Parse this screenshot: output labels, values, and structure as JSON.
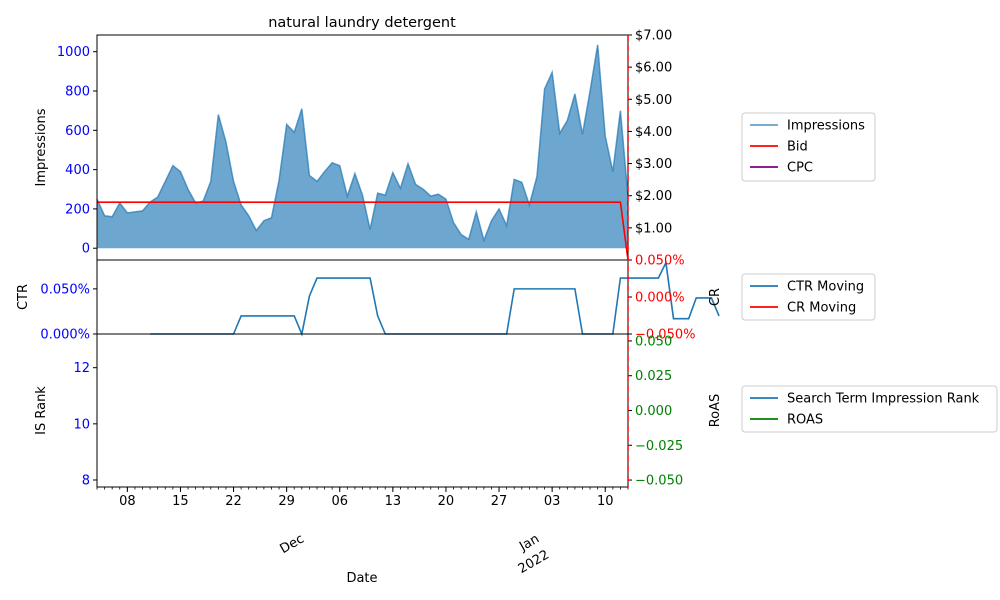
{
  "chart_data": {
    "type": "area",
    "title": "natural laundry detergent",
    "xlabel": "Date",
    "x_start": "2021-11-04",
    "x_end": "2022-01-13",
    "x_ticks": [
      {
        "date": "2021-11-08",
        "label": "08"
      },
      {
        "date": "2021-11-15",
        "label": "15"
      },
      {
        "date": "2021-11-22",
        "label": "22"
      },
      {
        "date": "2021-11-29",
        "label": "29"
      },
      {
        "date": "2021-12-06",
        "label": "06"
      },
      {
        "date": "2021-12-13",
        "label": "13"
      },
      {
        "date": "2021-12-20",
        "label": "20"
      },
      {
        "date": "2021-12-27",
        "label": "27"
      },
      {
        "date": "2022-01-03",
        "label": "03"
      },
      {
        "date": "2022-01-10",
        "label": "10"
      }
    ],
    "x_month_labels": [
      {
        "date": "2021-12-01",
        "label": "Dec"
      },
      {
        "date": "2022-01-01",
        "label": "Jan",
        "sublabel": "2022"
      }
    ],
    "panels": [
      {
        "ylabel_left": "Impressions",
        "ylim_left": [
          -60,
          1085
        ],
        "yticks_left": [
          {
            "value": 0,
            "label": "0"
          },
          {
            "value": 200,
            "label": "200"
          },
          {
            "value": 400,
            "label": "400"
          },
          {
            "value": 600,
            "label": "600"
          },
          {
            "value": 800,
            "label": "800"
          },
          {
            "value": 1000,
            "label": "1000"
          }
        ],
        "ylim_right": [
          0,
          7.0
        ],
        "yticks_right": [
          {
            "value": 1,
            "label": "$1.00"
          },
          {
            "value": 2,
            "label": "$2.00"
          },
          {
            "value": 3,
            "label": "$3.00"
          },
          {
            "value": 4,
            "label": "$4.00"
          },
          {
            "value": 5,
            "label": "$5.00"
          },
          {
            "value": 6,
            "label": "$6.00"
          },
          {
            "value": 7,
            "label": "$7.00"
          }
        ],
        "series": [
          {
            "name": "Impressions",
            "type": "area",
            "color": "#1f77b4",
            "values": [
              250,
              165,
              160,
              230,
              180,
              185,
              190,
              235,
              260,
              340,
              420,
              390,
              300,
              230,
              240,
              340,
              680,
              540,
              340,
              220,
              165,
              90,
              140,
              155,
              345,
              630,
              590,
              710,
              370,
              340,
              390,
              435,
              420,
              265,
              380,
              270,
              95,
              280,
              270,
              385,
              305,
              430,
              325,
              300,
              265,
              275,
              250,
              130,
              70,
              45,
              185,
              40,
              140,
              200,
              115,
              350,
              335,
              220,
              365,
              810,
              895,
              585,
              650,
              785,
              580,
              800,
              1035,
              570,
              390,
              700,
              260
            ]
          },
          {
            "name": "Bid",
            "type": "line",
            "color": "#ff0000",
            "values": [
              1.8,
              1.8,
              1.8,
              1.8,
              1.8,
              1.8,
              1.8,
              1.8,
              1.8,
              1.8,
              1.8,
              1.8,
              1.8,
              1.8,
              1.8,
              1.8,
              1.8,
              1.8,
              1.8,
              1.8,
              1.8,
              1.8,
              1.8,
              1.8,
              1.8,
              1.8,
              1.8,
              1.8,
              1.8,
              1.8,
              1.8,
              1.8,
              1.8,
              1.8,
              1.8,
              1.8,
              1.8,
              1.8,
              1.8,
              1.8,
              1.8,
              1.8,
              1.8,
              1.8,
              1.8,
              1.8,
              1.8,
              1.8,
              1.8,
              1.8,
              1.8,
              1.8,
              1.8,
              1.8,
              1.8,
              1.8,
              1.8,
              1.8,
              1.8,
              1.8,
              1.8,
              1.8,
              1.8,
              1.8,
              1.8,
              1.8,
              1.8,
              1.8,
              1.8,
              1.8,
              0
            ]
          },
          {
            "name": "CPC",
            "type": "line",
            "color": "#800080",
            "values": []
          }
        ]
      },
      {
        "ylabel_left": "CTR",
        "ylabel_right": "CR",
        "ylim_left": [
          0,
          0.00082
        ],
        "yticks_left": [
          {
            "value": 0,
            "label": "0.000%"
          },
          {
            "value": 0.0005,
            "label": "0.050%"
          }
        ],
        "ylim_right": [
          -0.0005,
          0.0005
        ],
        "yticks_right": [
          {
            "value": -0.0005,
            "label": "−0.050%"
          },
          {
            "value": 0,
            "label": "0.000%"
          },
          {
            "value": 0.0005,
            "label": "0.050%"
          }
        ],
        "series": [
          {
            "name": "CTR Moving",
            "type": "line",
            "color": "#1f77b4",
            "start_index": 7,
            "values": [
              0,
              0,
              0,
              0,
              0,
              0,
              0,
              0,
              0,
              0,
              0,
              0,
              0.0002,
              0.0002,
              0.0002,
              0.0002,
              0.0002,
              0.0002,
              0.0002,
              0.0002,
              0,
              0.00042,
              0.00062,
              0.00062,
              0.00062,
              0.00062,
              0.00062,
              0.00062,
              0.00062,
              0.00062,
              0.0002,
              0,
              0,
              0,
              0,
              0,
              0,
              0,
              0,
              0,
              0,
              0,
              0,
              0,
              0,
              0,
              0,
              0,
              0.0005,
              0.0005,
              0.0005,
              0.0005,
              0.0005,
              0.0005,
              0.0005,
              0.0005,
              0.0005,
              0,
              0,
              0,
              0,
              0,
              0.00062,
              0.00062,
              0.00062,
              0.00062,
              0.00062,
              0.00062,
              0.00079,
              0.00017,
              0.00017,
              0.00017,
              0.0004,
              0.0004,
              0.0004,
              0.0002
            ]
          },
          {
            "name": "CR Moving",
            "type": "line",
            "color": "#ff0000",
            "values": []
          }
        ]
      },
      {
        "ylabel_left": "IS Rank",
        "ylabel_right": "RoAS",
        "ylim_left": [
          7.75,
          13.2
        ],
        "yticks_left": [
          {
            "value": 8,
            "label": "8"
          },
          {
            "value": 10,
            "label": "10"
          },
          {
            "value": 12,
            "label": "12"
          }
        ],
        "ylim_right": [
          -0.055,
          0.055
        ],
        "yticks_right": [
          {
            "value": -0.05,
            "label": "−0.050"
          },
          {
            "value": -0.025,
            "label": "−0.025"
          },
          {
            "value": 0,
            "label": "0.000"
          },
          {
            "value": 0.025,
            "label": "0.025"
          },
          {
            "value": 0.05,
            "label": "0.050"
          }
        ],
        "series": [
          {
            "name": "Search Term Impression Rank",
            "type": "line",
            "color": "#1f77b4",
            "values": []
          },
          {
            "name": "ROAS",
            "type": "line",
            "color": "#008000",
            "values": []
          }
        ]
      }
    ],
    "legend_placement": "right",
    "colors": {
      "left_axis_ticks": "#0000ff",
      "cost_axis_ticks": "#000000",
      "cr_axis_ticks": "#ff0000",
      "roas_axis_ticks": "#008000",
      "marker_line": "#ff0000"
    }
  }
}
